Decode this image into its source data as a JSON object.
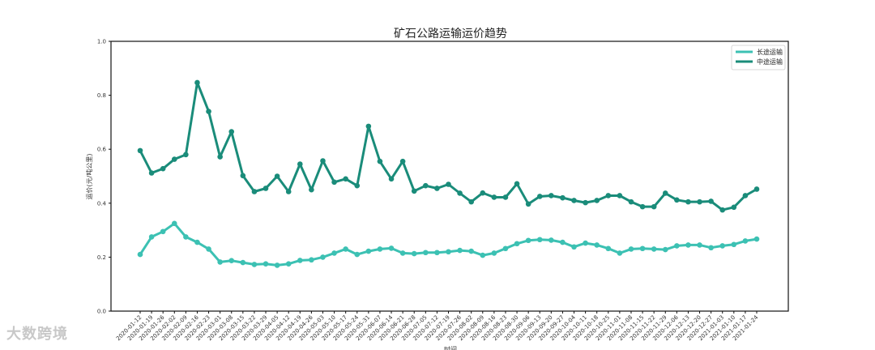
{
  "watermark": "大数跨境",
  "chart_data": {
    "type": "line",
    "title": "矿石公路运输运价趋势",
    "xlabel": "时间",
    "ylabel": "运价(元/吨公里)",
    "ylim": [
      0.0,
      1.0
    ],
    "yticks": [
      "0.0",
      "0.2",
      "0.4",
      "0.6",
      "0.8",
      "1.0"
    ],
    "legend_position": "top-right",
    "categories": [
      "2020-01-12",
      "2020-01-19",
      "2020-01-26",
      "2020-02-02",
      "2020-02-09",
      "2020-02-16",
      "2020-02-23",
      "2020-03-01",
      "2020-03-08",
      "2020-03-15",
      "2020-03-22",
      "2020-03-29",
      "2020-04-05",
      "2020-04-12",
      "2020-04-19",
      "2020-04-26",
      "2020-05-03",
      "2020-05-10",
      "2020-05-17",
      "2020-05-24",
      "2020-05-31",
      "2020-06-07",
      "2020-06-14",
      "2020-06-21",
      "2020-06-28",
      "2020-07-05",
      "2020-07-12",
      "2020-07-19",
      "2020-07-26",
      "2020-08-02",
      "2020-08-09",
      "2020-08-16",
      "2020-08-23",
      "2020-08-30",
      "2020-09-06",
      "2020-09-13",
      "2020-09-20",
      "2020-09-27",
      "2020-10-04",
      "2020-10-11",
      "2020-10-18",
      "2020-10-25",
      "2020-11-01",
      "2020-11-08",
      "2020-11-15",
      "2020-11-22",
      "2020-11-29",
      "2020-12-06",
      "2020-12-13",
      "2020-12-20",
      "2020-12-27",
      "2021-01-03",
      "2021-01-10",
      "2021-01-17",
      "2021-01-24"
    ],
    "series": [
      {
        "name": "长途运输",
        "color": "#3cc1b3",
        "values": [
          0.21,
          0.275,
          0.295,
          0.325,
          0.275,
          0.255,
          0.23,
          0.182,
          0.187,
          0.18,
          0.173,
          0.175,
          0.17,
          0.175,
          0.188,
          0.19,
          0.2,
          0.215,
          0.23,
          0.21,
          0.222,
          0.23,
          0.233,
          0.215,
          0.213,
          0.217,
          0.217,
          0.22,
          0.225,
          0.222,
          0.207,
          0.215,
          0.232,
          0.25,
          0.262,
          0.265,
          0.263,
          0.255,
          0.238,
          0.252,
          0.245,
          0.232,
          0.215,
          0.23,
          0.232,
          0.23,
          0.228,
          0.242,
          0.245,
          0.245,
          0.235,
          0.242,
          0.247,
          0.26,
          0.267
        ]
      },
      {
        "name": "中途运输",
        "color": "#1a8c7a",
        "values": [
          0.595,
          0.512,
          0.528,
          0.563,
          0.58,
          0.847,
          0.74,
          0.572,
          0.665,
          0.502,
          0.443,
          0.455,
          0.5,
          0.443,
          0.545,
          0.45,
          0.557,
          0.478,
          0.49,
          0.465,
          0.685,
          0.555,
          0.49,
          0.555,
          0.445,
          0.465,
          0.455,
          0.47,
          0.437,
          0.405,
          0.438,
          0.422,
          0.422,
          0.472,
          0.397,
          0.425,
          0.428,
          0.42,
          0.41,
          0.402,
          0.41,
          0.428,
          0.428,
          0.405,
          0.387,
          0.387,
          0.437,
          0.412,
          0.405,
          0.405,
          0.407,
          0.375,
          0.385,
          0.428,
          0.452
        ]
      }
    ]
  }
}
